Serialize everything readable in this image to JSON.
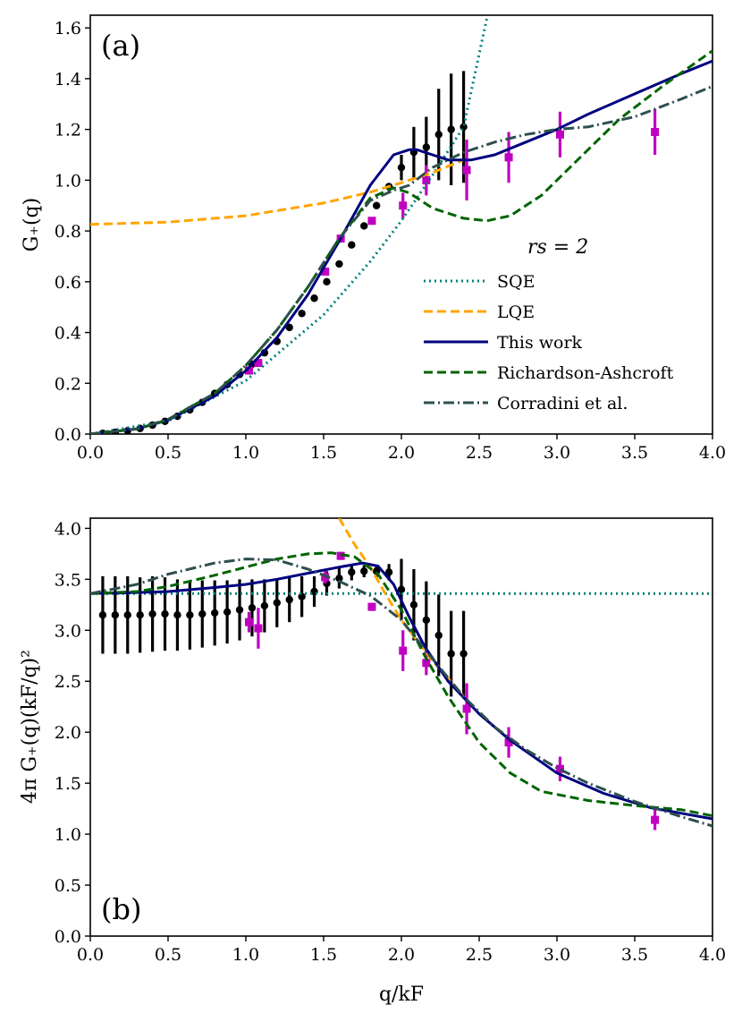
{
  "chart_data": [
    {
      "panel": "(a)",
      "type": "line",
      "xlabel": "",
      "ylabel": "G₊(q)",
      "xlim": [
        0,
        4
      ],
      "ylim": [
        0,
        1.65
      ],
      "xticks": [
        "0.0",
        "0.5",
        "1.0",
        "1.5",
        "2.0",
        "2.5",
        "3.0",
        "3.5",
        "4.0"
      ],
      "yticks": [
        "0.0",
        "0.2",
        "0.4",
        "0.6",
        "0.8",
        "1.0",
        "1.2",
        "1.4",
        "1.6"
      ],
      "legend_title": "rs = 2",
      "legend_position": "center-right",
      "series": [
        {
          "name": "SQE",
          "color": "#008080",
          "style": "dotted",
          "x": [
            0.0,
            0.5,
            1.0,
            1.5,
            1.8,
            2.0,
            2.2,
            2.4,
            2.55
          ],
          "y": [
            0.0,
            0.052,
            0.21,
            0.47,
            0.68,
            0.84,
            1.02,
            1.21,
            1.64
          ]
        },
        {
          "name": "LQE",
          "color": "#FFA500",
          "style": "dashed",
          "x": [
            0.0,
            0.5,
            1.0,
            1.5,
            1.8,
            2.0,
            2.2,
            2.4
          ],
          "y": [
            0.826,
            0.835,
            0.86,
            0.91,
            0.953,
            0.99,
            1.03,
            1.08
          ]
        },
        {
          "name": "This work",
          "color": "#000080",
          "style": "solid",
          "x": [
            0.0,
            0.3,
            0.5,
            0.8,
            1.0,
            1.2,
            1.4,
            1.6,
            1.8,
            1.95,
            2.05,
            2.1,
            2.2,
            2.3,
            2.45,
            2.6,
            2.8,
            3.0,
            3.2,
            3.5,
            3.8,
            4.0
          ],
          "y": [
            0.0,
            0.02,
            0.055,
            0.15,
            0.25,
            0.38,
            0.55,
            0.76,
            0.98,
            1.1,
            1.12,
            1.12,
            1.1,
            1.08,
            1.08,
            1.1,
            1.15,
            1.2,
            1.26,
            1.34,
            1.42,
            1.47
          ]
        },
        {
          "name": "Richardson-Ashcroft",
          "color": "#006400",
          "style": "dashed",
          "x": [
            0.0,
            0.3,
            0.5,
            0.8,
            1.0,
            1.2,
            1.4,
            1.6,
            1.8,
            1.95,
            2.05,
            2.2,
            2.4,
            2.55,
            2.7,
            2.9,
            3.1,
            3.4,
            3.7,
            4.0
          ],
          "y": [
            0.0,
            0.02,
            0.056,
            0.16,
            0.27,
            0.41,
            0.58,
            0.77,
            0.93,
            0.97,
            0.95,
            0.89,
            0.85,
            0.84,
            0.86,
            0.94,
            1.06,
            1.24,
            1.38,
            1.51
          ]
        },
        {
          "name": "Corradini et al.",
          "color": "#2F4F4F",
          "style": "dashdot",
          "x": [
            0.0,
            0.3,
            0.5,
            0.8,
            1.0,
            1.2,
            1.4,
            1.6,
            1.8,
            1.95,
            2.05,
            2.2,
            2.4,
            2.6,
            2.8,
            3.0,
            3.2,
            3.5,
            3.8,
            4.0
          ],
          "y": [
            0.0,
            0.02,
            0.058,
            0.16,
            0.27,
            0.41,
            0.58,
            0.77,
            0.92,
            0.96,
            0.98,
            1.05,
            1.11,
            1.15,
            1.18,
            1.2,
            1.21,
            1.25,
            1.32,
            1.37
          ]
        }
      ],
      "points_black": {
        "x": [
          0.08,
          0.16,
          0.24,
          0.32,
          0.4,
          0.48,
          0.56,
          0.64,
          0.72,
          0.8,
          0.88,
          0.96,
          1.04,
          1.12,
          1.2,
          1.28,
          1.36,
          1.44,
          1.52,
          1.6,
          1.68,
          1.76,
          1.84,
          1.92,
          2.0,
          2.08,
          2.16,
          2.24,
          2.32,
          2.4
        ],
        "y": [
          0.003,
          0.007,
          0.013,
          0.022,
          0.035,
          0.05,
          0.07,
          0.095,
          0.125,
          0.16,
          0.195,
          0.235,
          0.275,
          0.32,
          0.365,
          0.42,
          0.475,
          0.535,
          0.6,
          0.67,
          0.745,
          0.82,
          0.9,
          0.975,
          1.05,
          1.11,
          1.13,
          1.18,
          1.2,
          1.21
        ],
        "err": [
          0.0,
          0.0,
          0.0,
          0.0,
          0.0,
          0.0,
          0.0,
          0.0,
          0.0,
          0.0,
          0.0,
          0.0,
          0.0,
          0.0,
          0.0,
          0.0,
          0.0,
          0.0,
          0.0,
          0.0,
          0.0,
          0.0,
          0.0,
          0.0,
          0.05,
          0.1,
          0.12,
          0.18,
          0.22,
          0.22
        ]
      },
      "points_magenta": {
        "x": [
          1.02,
          1.08,
          1.51,
          1.61,
          1.81,
          2.01,
          2.16,
          2.42,
          2.69,
          3.02,
          3.63
        ],
        "y": [
          0.25,
          0.28,
          0.64,
          0.77,
          0.84,
          0.9,
          1.0,
          1.04,
          1.09,
          1.18,
          1.19
        ],
        "err": [
          0.0,
          0.0,
          0.0,
          0.0,
          0.0,
          0.05,
          0.06,
          0.12,
          0.1,
          0.09,
          0.09
        ]
      }
    },
    {
      "panel": "(b)",
      "type": "line",
      "xlabel": "q/kF",
      "ylabel": "4π G₊(q)(kF/q)²",
      "xlim": [
        0,
        4
      ],
      "ylim": [
        0,
        4.1
      ],
      "xticks": [
        "0.0",
        "0.5",
        "1.0",
        "1.5",
        "2.0",
        "2.5",
        "3.0",
        "3.5",
        "4.0"
      ],
      "yticks": [
        "0.0",
        "0.5",
        "1.0",
        "1.5",
        "2.0",
        "2.5",
        "3.0",
        "3.5",
        "4.0"
      ],
      "series": [
        {
          "name": "SQE",
          "color": "#008080",
          "style": "dotted",
          "x": [
            0.0,
            1.0,
            2.0,
            3.0,
            4.0
          ],
          "y": [
            3.36,
            3.36,
            3.36,
            3.36,
            3.36
          ]
        },
        {
          "name": "LQE",
          "color": "#FFA500",
          "style": "dashed",
          "x": [
            1.6,
            1.7,
            1.8,
            1.9,
            2.0,
            2.1,
            2.2,
            2.3,
            2.4
          ],
          "y": [
            4.1,
            3.84,
            3.62,
            3.35,
            3.1,
            2.9,
            2.7,
            2.53,
            2.35
          ]
        },
        {
          "name": "This work",
          "color": "#000080",
          "style": "solid",
          "x": [
            0.0,
            0.3,
            0.5,
            0.8,
            1.0,
            1.2,
            1.4,
            1.6,
            1.75,
            1.85,
            1.95,
            2.05,
            2.15,
            2.3,
            2.5,
            2.7,
            3.0,
            3.3,
            3.6,
            4.0
          ],
          "y": [
            3.36,
            3.37,
            3.38,
            3.42,
            3.45,
            3.5,
            3.56,
            3.62,
            3.66,
            3.63,
            3.45,
            3.13,
            2.84,
            2.5,
            2.18,
            1.92,
            1.6,
            1.4,
            1.26,
            1.15
          ]
        },
        {
          "name": "Richardson-Ashcroft",
          "color": "#006400",
          "style": "dashed",
          "x": [
            0.0,
            0.3,
            0.5,
            0.8,
            1.0,
            1.2,
            1.4,
            1.55,
            1.7,
            1.85,
            2.0,
            2.15,
            2.3,
            2.5,
            2.7,
            2.9,
            3.2,
            3.5,
            3.8,
            4.0
          ],
          "y": [
            3.36,
            3.38,
            3.43,
            3.54,
            3.62,
            3.7,
            3.75,
            3.76,
            3.72,
            3.55,
            3.2,
            2.75,
            2.35,
            1.9,
            1.6,
            1.42,
            1.33,
            1.28,
            1.24,
            1.18
          ]
        },
        {
          "name": "Corradini et al.",
          "color": "#2F4F4F",
          "style": "dashdot",
          "x": [
            0.0,
            0.3,
            0.5,
            0.8,
            1.0,
            1.2,
            1.4,
            1.6,
            1.8,
            2.0,
            2.2,
            2.4,
            2.6,
            2.8,
            3.0,
            3.2,
            3.5,
            3.8,
            4.0
          ],
          "y": [
            3.36,
            3.45,
            3.55,
            3.66,
            3.7,
            3.69,
            3.6,
            3.48,
            3.34,
            3.1,
            2.72,
            2.35,
            2.05,
            1.83,
            1.65,
            1.5,
            1.32,
            1.17,
            1.08
          ]
        }
      ],
      "points_black": {
        "x": [
          0.08,
          0.16,
          0.24,
          0.32,
          0.4,
          0.48,
          0.56,
          0.64,
          0.72,
          0.8,
          0.88,
          0.96,
          1.04,
          1.12,
          1.2,
          1.28,
          1.36,
          1.44,
          1.52,
          1.6,
          1.68,
          1.76,
          1.84,
          1.92,
          2.0,
          2.08,
          2.16,
          2.24,
          2.32,
          2.4
        ],
        "y": [
          3.15,
          3.15,
          3.15,
          3.15,
          3.16,
          3.16,
          3.15,
          3.15,
          3.16,
          3.17,
          3.18,
          3.2,
          3.22,
          3.24,
          3.27,
          3.3,
          3.33,
          3.38,
          3.46,
          3.51,
          3.57,
          3.58,
          3.58,
          3.57,
          3.4,
          3.25,
          3.1,
          2.95,
          2.77,
          2.77
        ],
        "err": [
          0.38,
          0.38,
          0.38,
          0.37,
          0.37,
          0.36,
          0.35,
          0.34,
          0.33,
          0.32,
          0.31,
          0.3,
          0.28,
          0.26,
          0.24,
          0.22,
          0.2,
          0.15,
          0.12,
          0.1,
          0.08,
          0.06,
          0.06,
          0.08,
          0.3,
          0.35,
          0.38,
          0.4,
          0.42,
          0.42
        ]
      },
      "points_magenta": {
        "x": [
          1.02,
          1.08,
          1.51,
          1.61,
          1.81,
          2.01,
          2.16,
          2.42,
          2.69,
          3.02,
          3.63
        ],
        "y": [
          3.08,
          3.02,
          3.52,
          3.73,
          3.23,
          2.8,
          2.68,
          2.23,
          1.9,
          1.64,
          1.14
        ],
        "err": [
          0.1,
          0.2,
          0.06,
          0.04,
          0.04,
          0.2,
          0.12,
          0.25,
          0.15,
          0.12,
          0.1
        ]
      }
    }
  ]
}
